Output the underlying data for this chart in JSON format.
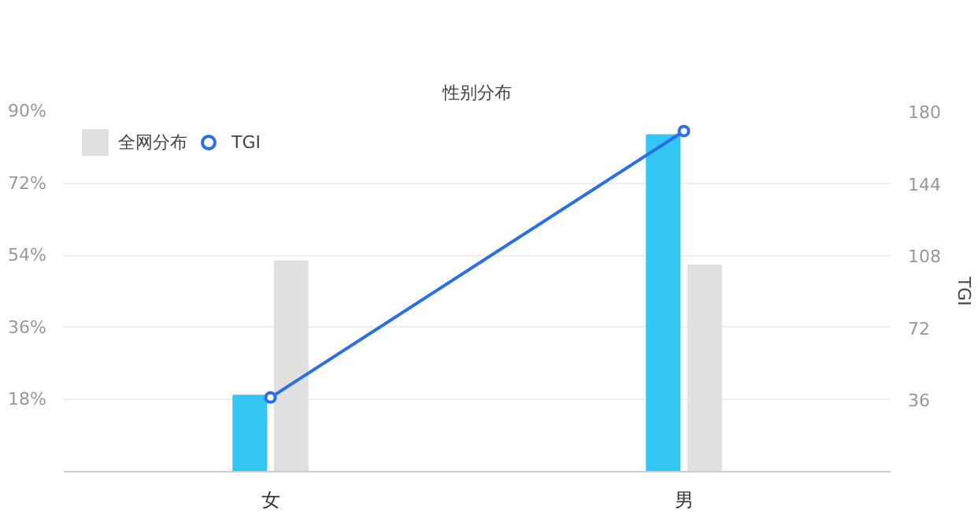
{
  "chart_data": {
    "type": "bar",
    "title": "性别分布",
    "categories": [
      "女",
      "男"
    ],
    "series": [
      {
        "color": "#33c6f5",
        "values": [
          19,
          84
        ]
      },
      {
        "name": "全网分布",
        "color": "#e0e0e0",
        "values": [
          52.5,
          51.5
        ]
      },
      {
        "name": "TGI",
        "type": "line",
        "axis": "y2",
        "color": "#2a6ee8",
        "marker": "circle",
        "values": [
          37,
          170
        ]
      }
    ],
    "ylim": [
      0,
      90
    ],
    "yticks": [
      {
        "value": 18,
        "label": "18%"
      },
      {
        "value": 36,
        "label": "36%"
      },
      {
        "value": 54,
        "label": "54%"
      },
      {
        "value": 72,
        "label": "72%"
      },
      {
        "value": 90,
        "label": "90%"
      }
    ],
    "y2label": "TGI",
    "y2lim": [
      0,
      180
    ],
    "y2ticks": [
      36,
      72,
      108,
      144,
      180
    ],
    "grid": "y",
    "legend": "top left"
  }
}
